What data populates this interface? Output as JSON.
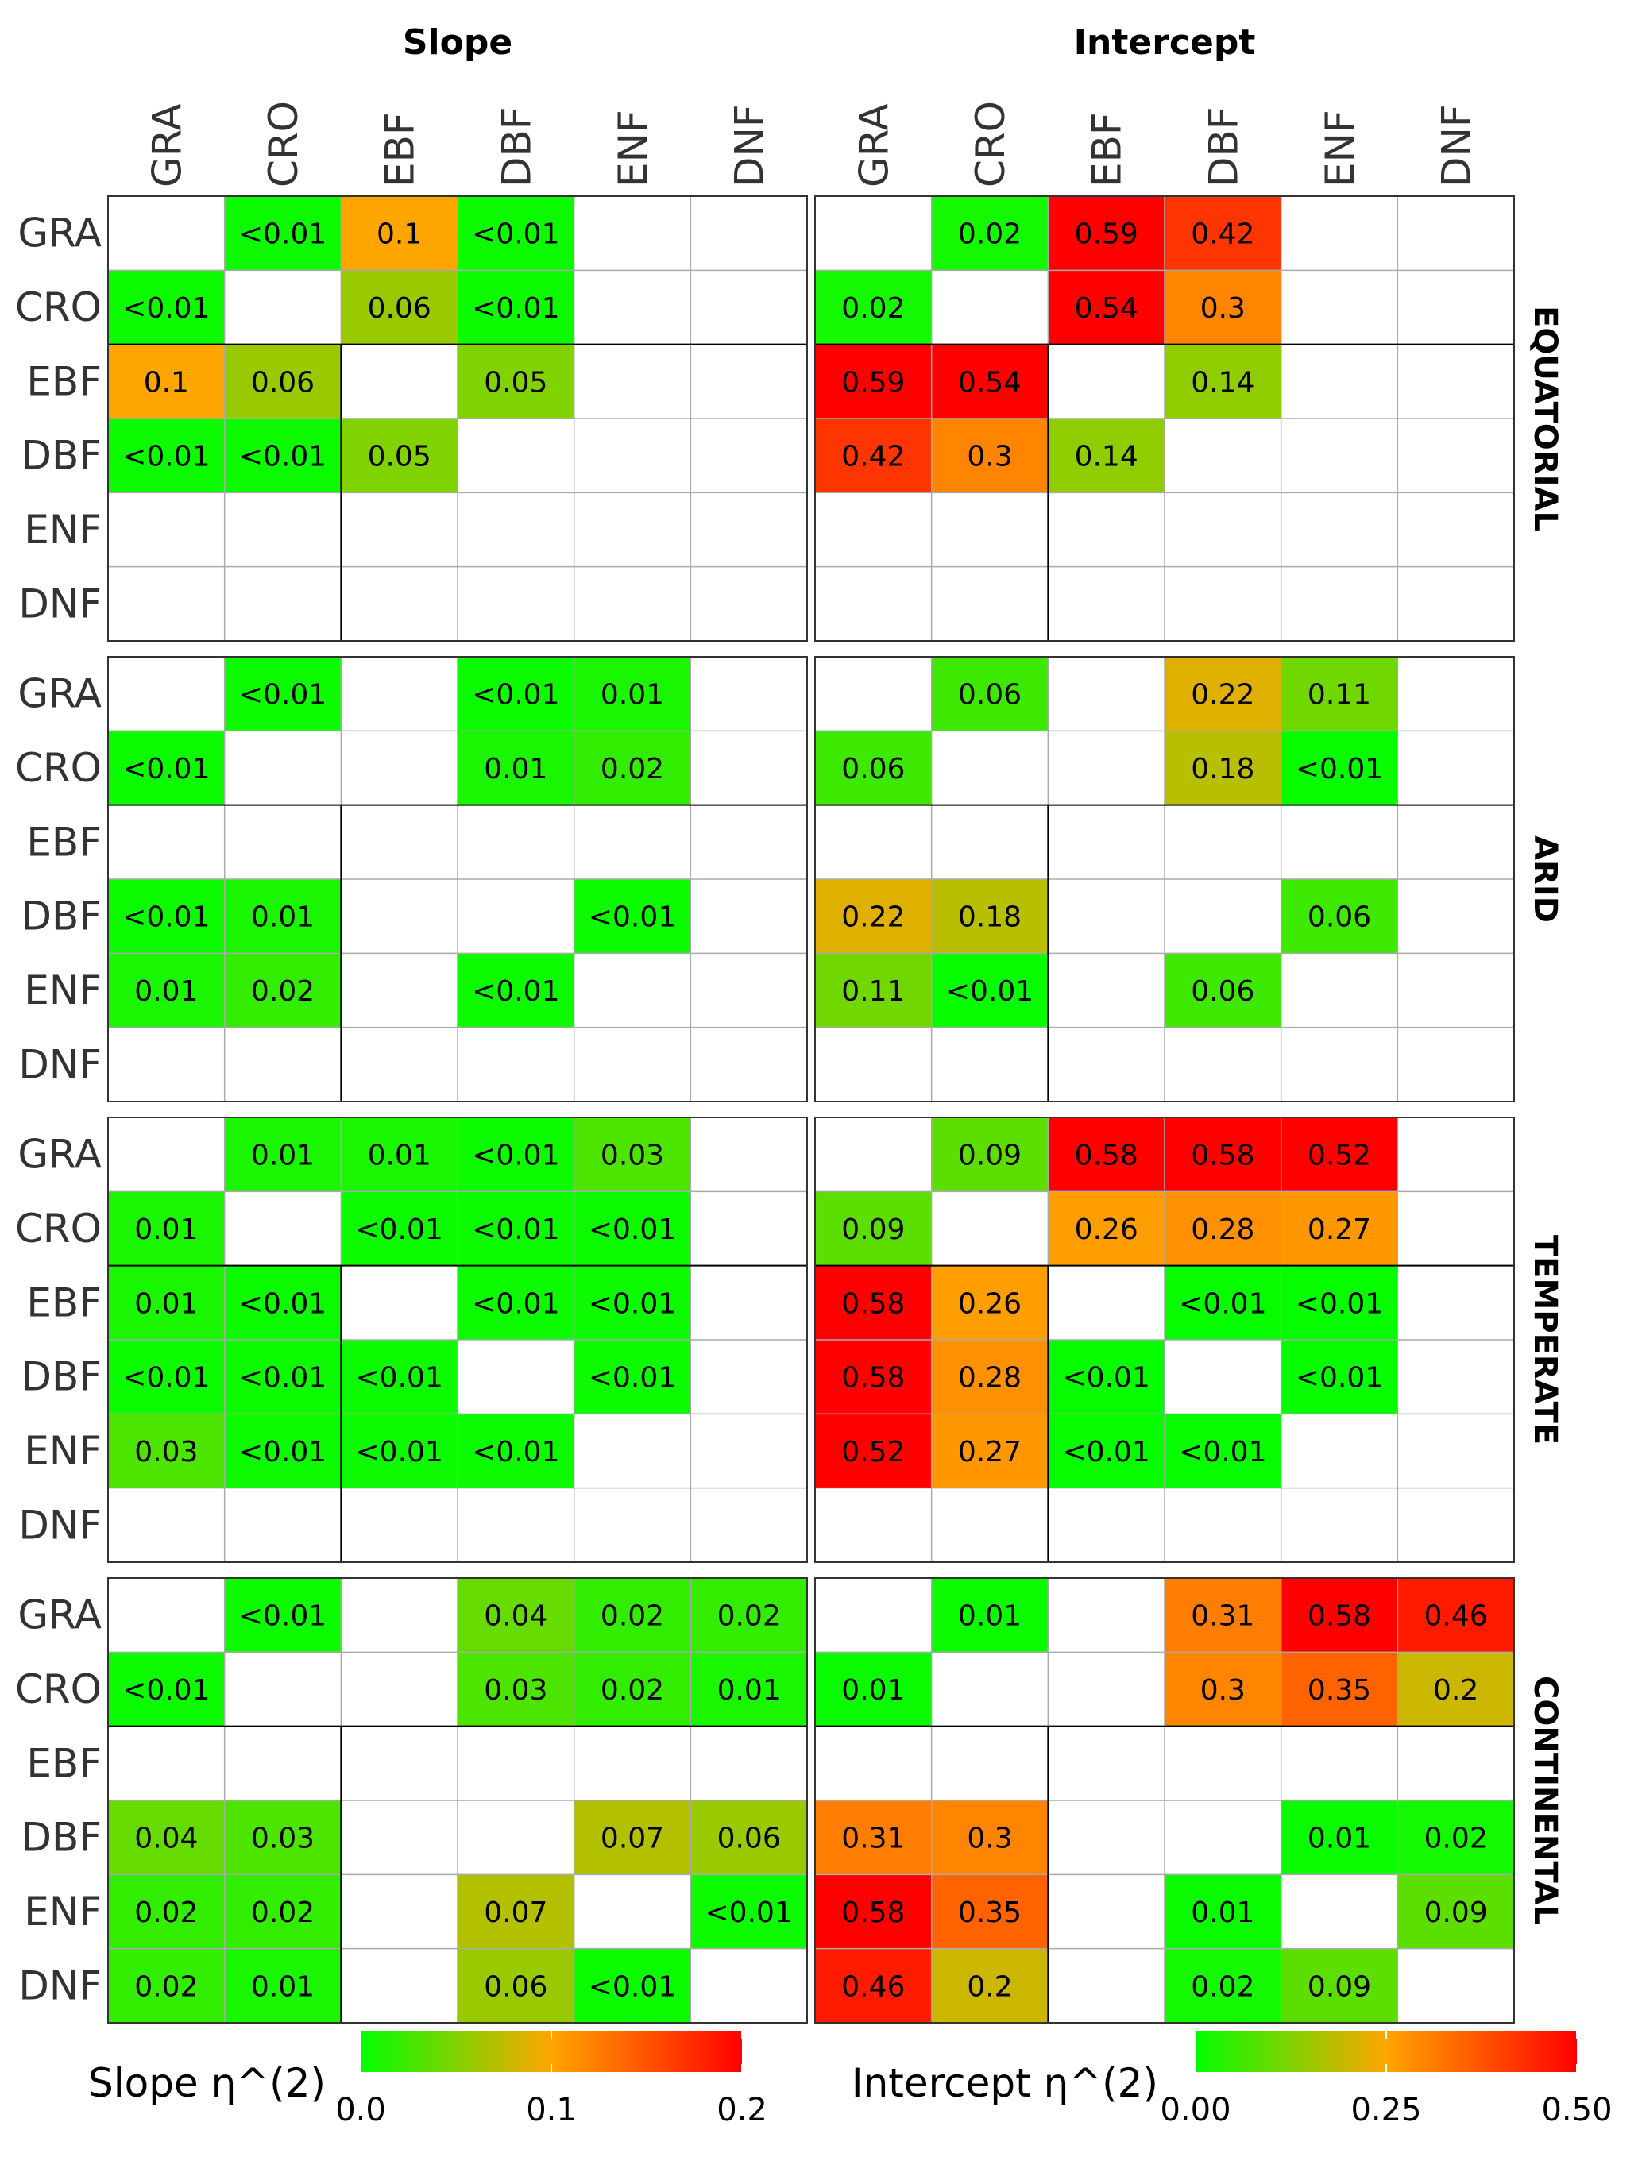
{
  "chart_data": {
    "type": "heatmap",
    "panels": [
      "Slope",
      "Intercept"
    ],
    "facets": [
      "EQUATORIAL",
      "ARID",
      "TEMPERATE",
      "CONTINENTAL"
    ],
    "categories": [
      "GRA",
      "CRO",
      "EBF",
      "DBF",
      "ENF",
      "DNF"
    ],
    "legend": {
      "Slope": {
        "title": "Slope η^(2)",
        "range": [
          0,
          0.2
        ],
        "ticks": [
          "0.0",
          "0.1",
          "0.2"
        ],
        "tick_values": [
          0,
          0.1,
          0.2
        ]
      },
      "Intercept": {
        "title": "Intercept η^(2)",
        "range": [
          0,
          0.5
        ],
        "ticks": [
          "0.00",
          "0.25",
          "0.50"
        ],
        "tick_values": [
          0,
          0.25,
          0.5
        ]
      }
    },
    "colors": {
      "low": "#00ff00",
      "mid": "#ffa500",
      "high": "#ff0000",
      "grid": "#aaaaaa",
      "border": "#000000"
    },
    "data": {
      "EQUATORIAL": {
        "Slope": [
          [
            "",
            "<0.01",
            "0.1",
            "<0.01",
            "",
            ""
          ],
          [
            "<0.01",
            "",
            "0.06",
            "<0.01",
            "",
            ""
          ],
          [
            "0.1",
            "0.06",
            "",
            "0.05",
            "",
            ""
          ],
          [
            "<0.01",
            "<0.01",
            "0.05",
            "",
            "",
            ""
          ],
          [
            "",
            "",
            "",
            "",
            "",
            ""
          ],
          [
            "",
            "",
            "",
            "",
            "",
            ""
          ]
        ],
        "Intercept": [
          [
            "",
            "0.02",
            "0.59",
            "0.42",
            "",
            ""
          ],
          [
            "0.02",
            "",
            "0.54",
            "0.3",
            "",
            ""
          ],
          [
            "0.59",
            "0.54",
            "",
            "0.14",
            "",
            ""
          ],
          [
            "0.42",
            "0.3",
            "0.14",
            "",
            "",
            ""
          ],
          [
            "",
            "",
            "",
            "",
            "",
            ""
          ],
          [
            "",
            "",
            "",
            "",
            "",
            ""
          ]
        ]
      },
      "ARID": {
        "Slope": [
          [
            "",
            "<0.01",
            "",
            "<0.01",
            "0.01",
            ""
          ],
          [
            "<0.01",
            "",
            "",
            "0.01",
            "0.02",
            ""
          ],
          [
            "",
            "",
            "",
            "",
            "",
            ""
          ],
          [
            "<0.01",
            "0.01",
            "",
            "",
            "<0.01",
            ""
          ],
          [
            "0.01",
            "0.02",
            "",
            "<0.01",
            "",
            ""
          ],
          [
            "",
            "",
            "",
            "",
            "",
            ""
          ]
        ],
        "Intercept": [
          [
            "",
            "0.06",
            "",
            "0.22",
            "0.11",
            ""
          ],
          [
            "0.06",
            "",
            "",
            "0.18",
            "<0.01",
            ""
          ],
          [
            "",
            "",
            "",
            "",
            "",
            ""
          ],
          [
            "0.22",
            "0.18",
            "",
            "",
            "0.06",
            ""
          ],
          [
            "0.11",
            "<0.01",
            "",
            "0.06",
            "",
            ""
          ],
          [
            "",
            "",
            "",
            "",
            "",
            ""
          ]
        ]
      },
      "TEMPERATE": {
        "Slope": [
          [
            "",
            "0.01",
            "0.01",
            "<0.01",
            "0.03",
            ""
          ],
          [
            "0.01",
            "",
            "<0.01",
            "<0.01",
            "<0.01",
            ""
          ],
          [
            "0.01",
            "<0.01",
            "",
            "<0.01",
            "<0.01",
            ""
          ],
          [
            "<0.01",
            "<0.01",
            "<0.01",
            "",
            "<0.01",
            ""
          ],
          [
            "0.03",
            "<0.01",
            "<0.01",
            "<0.01",
            "",
            ""
          ],
          [
            "",
            "",
            "",
            "",
            "",
            ""
          ]
        ],
        "Intercept": [
          [
            "",
            "0.09",
            "0.58",
            "0.58",
            "0.52",
            ""
          ],
          [
            "0.09",
            "",
            "0.26",
            "0.28",
            "0.27",
            ""
          ],
          [
            "0.58",
            "0.26",
            "",
            "<0.01",
            "<0.01",
            ""
          ],
          [
            "0.58",
            "0.28",
            "<0.01",
            "",
            "<0.01",
            ""
          ],
          [
            "0.52",
            "0.27",
            "<0.01",
            "<0.01",
            "",
            ""
          ],
          [
            "",
            "",
            "",
            "",
            "",
            ""
          ]
        ]
      },
      "CONTINENTAL": {
        "Slope": [
          [
            "",
            "<0.01",
            "",
            "0.04",
            "0.02",
            "0.02"
          ],
          [
            "<0.01",
            "",
            "",
            "0.03",
            "0.02",
            "0.01"
          ],
          [
            "",
            "",
            "",
            "",
            "",
            ""
          ],
          [
            "0.04",
            "0.03",
            "",
            "",
            "0.07",
            "0.06"
          ],
          [
            "0.02",
            "0.02",
            "",
            "0.07",
            "",
            "<0.01"
          ],
          [
            "0.02",
            "0.01",
            "",
            "0.06",
            "<0.01",
            ""
          ]
        ],
        "Intercept": [
          [
            "",
            "0.01",
            "",
            "0.31",
            "0.58",
            "0.46"
          ],
          [
            "0.01",
            "",
            "",
            "0.3",
            "0.35",
            "0.2"
          ],
          [
            "",
            "",
            "",
            "",
            "",
            ""
          ],
          [
            "0.31",
            "0.3",
            "",
            "",
            "0.01",
            "0.02"
          ],
          [
            "0.58",
            "0.35",
            "",
            "0.01",
            "",
            "0.09"
          ],
          [
            "0.46",
            "0.2",
            "",
            "0.02",
            "0.09",
            ""
          ]
        ]
      }
    }
  }
}
